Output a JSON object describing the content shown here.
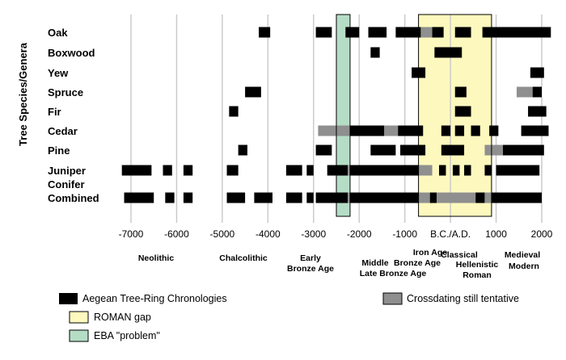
{
  "chart_data": {
    "type": "bar",
    "ylabel": "Tree Species/Genera",
    "x_tick_labels": [
      "-7000",
      "-6000",
      "-5000",
      "-4000",
      "-3000",
      "-2000",
      "-1000",
      "B.C./A.D.",
      "1000",
      "2000"
    ],
    "x_tick_values": [
      -7000,
      -6000,
      -5000,
      -4000,
      -3000,
      -2000,
      -1000,
      0,
      1000,
      2000
    ],
    "xlim": [
      -7300,
      2200
    ],
    "categories": [
      {
        "name": "Oak",
        "lines": [
          "Oak"
        ]
      },
      {
        "name": "Boxwood",
        "lines": [
          "Boxwood"
        ]
      },
      {
        "name": "Yew",
        "lines": [
          "Yew"
        ]
      },
      {
        "name": "Spruce",
        "lines": [
          "Spruce"
        ]
      },
      {
        "name": "Fir",
        "lines": [
          "Fir"
        ]
      },
      {
        "name": "Cedar",
        "lines": [
          "Cedar"
        ]
      },
      {
        "name": "Pine",
        "lines": [
          "Pine"
        ]
      },
      {
        "name": "Juniper",
        "lines": [
          "Juniper"
        ]
      },
      {
        "name": "Conifer Combined",
        "lines": [
          "Conifer",
          "Combined"
        ]
      }
    ],
    "spans": [
      {
        "row": 0,
        "start": -4200,
        "end": -3950,
        "kind": "chronology"
      },
      {
        "row": 0,
        "start": -2950,
        "end": -2600,
        "kind": "chronology"
      },
      {
        "row": 0,
        "start": -2300,
        "end": -2000,
        "kind": "chronology"
      },
      {
        "row": 0,
        "start": -1800,
        "end": -1400,
        "kind": "chronology"
      },
      {
        "row": 0,
        "start": -1200,
        "end": -650,
        "kind": "chronology"
      },
      {
        "row": 0,
        "start": -650,
        "end": -400,
        "kind": "tentative"
      },
      {
        "row": 0,
        "start": -400,
        "end": -150,
        "kind": "chronology"
      },
      {
        "row": 0,
        "start": 100,
        "end": 450,
        "kind": "chronology"
      },
      {
        "row": 0,
        "start": 700,
        "end": 2200,
        "kind": "chronology"
      },
      {
        "row": 1,
        "start": -1750,
        "end": -1550,
        "kind": "chronology"
      },
      {
        "row": 1,
        "start": -350,
        "end": 250,
        "kind": "chronology"
      },
      {
        "row": 2,
        "start": -850,
        "end": -550,
        "kind": "chronology"
      },
      {
        "row": 2,
        "start": 1750,
        "end": 2050,
        "kind": "chronology"
      },
      {
        "row": 3,
        "start": -4500,
        "end": -4150,
        "kind": "chronology"
      },
      {
        "row": 3,
        "start": 100,
        "end": 350,
        "kind": "chronology"
      },
      {
        "row": 3,
        "start": 1450,
        "end": 1800,
        "kind": "tentative"
      },
      {
        "row": 3,
        "start": 1800,
        "end": 2000,
        "kind": "chronology"
      },
      {
        "row": 4,
        "start": -4850,
        "end": -4650,
        "kind": "chronology"
      },
      {
        "row": 4,
        "start": 100,
        "end": 450,
        "kind": "chronology"
      },
      {
        "row": 4,
        "start": 1700,
        "end": 2100,
        "kind": "chronology"
      },
      {
        "row": 5,
        "start": -2900,
        "end": -2200,
        "kind": "tentative"
      },
      {
        "row": 5,
        "start": -2200,
        "end": -1450,
        "kind": "chronology"
      },
      {
        "row": 5,
        "start": -1450,
        "end": -1150,
        "kind": "tentative"
      },
      {
        "row": 5,
        "start": -1150,
        "end": -600,
        "kind": "chronology"
      },
      {
        "row": 5,
        "start": -200,
        "end": 0,
        "kind": "chronology"
      },
      {
        "row": 5,
        "start": 100,
        "end": 300,
        "kind": "chronology"
      },
      {
        "row": 5,
        "start": 450,
        "end": 650,
        "kind": "chronology"
      },
      {
        "row": 5,
        "start": 850,
        "end": 1050,
        "kind": "chronology"
      },
      {
        "row": 5,
        "start": 1550,
        "end": 2150,
        "kind": "chronology"
      },
      {
        "row": 6,
        "start": -4650,
        "end": -4450,
        "kind": "chronology"
      },
      {
        "row": 6,
        "start": -2950,
        "end": -2600,
        "kind": "chronology"
      },
      {
        "row": 6,
        "start": -1750,
        "end": -1200,
        "kind": "chronology"
      },
      {
        "row": 6,
        "start": -1100,
        "end": -550,
        "kind": "chronology"
      },
      {
        "row": 6,
        "start": -200,
        "end": 300,
        "kind": "chronology"
      },
      {
        "row": 6,
        "start": 750,
        "end": 1150,
        "kind": "tentative"
      },
      {
        "row": 6,
        "start": 1150,
        "end": 2050,
        "kind": "chronology"
      },
      {
        "row": 7,
        "start": -7200,
        "end": -6550,
        "kind": "chronology"
      },
      {
        "row": 7,
        "start": -6300,
        "end": -6100,
        "kind": "chronology"
      },
      {
        "row": 7,
        "start": -5850,
        "end": -5650,
        "kind": "chronology"
      },
      {
        "row": 7,
        "start": -4900,
        "end": -4650,
        "kind": "chronology"
      },
      {
        "row": 7,
        "start": -3600,
        "end": -3250,
        "kind": "chronology"
      },
      {
        "row": 7,
        "start": -3150,
        "end": -3000,
        "kind": "chronology"
      },
      {
        "row": 7,
        "start": -2700,
        "end": -2250,
        "kind": "chronology"
      },
      {
        "row": 7,
        "start": -2250,
        "end": -2200,
        "kind": "tentative"
      },
      {
        "row": 7,
        "start": -2200,
        "end": -700,
        "kind": "chronology"
      },
      {
        "row": 7,
        "start": -700,
        "end": -400,
        "kind": "tentative"
      },
      {
        "row": 7,
        "start": -250,
        "end": -100,
        "kind": "chronology"
      },
      {
        "row": 7,
        "start": 50,
        "end": 200,
        "kind": "chronology"
      },
      {
        "row": 7,
        "start": 300,
        "end": 450,
        "kind": "chronology"
      },
      {
        "row": 7,
        "start": 750,
        "end": 900,
        "kind": "chronology"
      },
      {
        "row": 7,
        "start": 1000,
        "end": 1950,
        "kind": "chronology"
      },
      {
        "row": 8,
        "start": -7150,
        "end": -6500,
        "kind": "chronology"
      },
      {
        "row": 8,
        "start": -6250,
        "end": -6050,
        "kind": "chronology"
      },
      {
        "row": 8,
        "start": -5850,
        "end": -5650,
        "kind": "chronology"
      },
      {
        "row": 8,
        "start": -4900,
        "end": -4500,
        "kind": "chronology"
      },
      {
        "row": 8,
        "start": -4300,
        "end": -3900,
        "kind": "chronology"
      },
      {
        "row": 8,
        "start": -3600,
        "end": -3250,
        "kind": "chronology"
      },
      {
        "row": 8,
        "start": -3150,
        "end": -3000,
        "kind": "chronology"
      },
      {
        "row": 8,
        "start": -2950,
        "end": -2250,
        "kind": "chronology"
      },
      {
        "row": 8,
        "start": -2250,
        "end": -2200,
        "kind": "tentative"
      },
      {
        "row": 8,
        "start": -2200,
        "end": -700,
        "kind": "chronology"
      },
      {
        "row": 8,
        "start": -700,
        "end": -450,
        "kind": "tentative"
      },
      {
        "row": 8,
        "start": -450,
        "end": -300,
        "kind": "chronology"
      },
      {
        "row": 8,
        "start": -300,
        "end": 550,
        "kind": "tentative"
      },
      {
        "row": 8,
        "start": 550,
        "end": 750,
        "kind": "chronology"
      },
      {
        "row": 8,
        "start": 750,
        "end": 900,
        "kind": "tentative"
      },
      {
        "row": 8,
        "start": 900,
        "end": 2000,
        "kind": "chronology"
      }
    ],
    "highlights": [
      {
        "name": "ROMAN gap",
        "start": -700,
        "end": 900,
        "color": "#fdf9be"
      },
      {
        "name": "EBA \"problem\"",
        "start": -2500,
        "end": -2200,
        "color": "#b5ddc5"
      }
    ],
    "eras": [
      {
        "lines": [
          "Neolithic"
        ],
        "center": -6050
      },
      {
        "lines": [
          "Chalcolithic"
        ],
        "center": -4500
      },
      {
        "lines": [
          "Early",
          "Bronze Age"
        ],
        "center": -2950
      },
      {
        "lines": [
          "Middle"
        ],
        "center": -1950
      },
      {
        "lines": [
          "Bronze Age"
        ],
        "center": -1300
      },
      {
        "lines": [
          "Late Bronze Age"
        ],
        "center": -1100
      },
      {
        "lines": [
          "Iron Age"
        ],
        "center": -700
      },
      {
        "lines": [
          "Classical"
        ],
        "center": 150
      },
      {
        "lines": [
          "Hellenistic"
        ],
        "center": 300
      },
      {
        "lines": [
          "Roman"
        ],
        "center": 400
      },
      {
        "lines": [
          "Medieval"
        ],
        "center": 1300
      },
      {
        "lines": [
          "Modern"
        ],
        "center": 1800
      }
    ],
    "legend": [
      {
        "label": "Aegean Tree-Ring Chronologies",
        "color": "#000000",
        "kind": "chronology"
      },
      {
        "label": "ROMAN gap",
        "color": "#fdf9be",
        "kind": "roman-gap"
      },
      {
        "label": "EBA \"problem\"",
        "color": "#b5ddc5",
        "kind": "eba-problem"
      },
      {
        "label": "Crossdating still tentative",
        "color": "#8f8f8f",
        "kind": "tentative"
      }
    ],
    "colors": {
      "chronology": "#000000",
      "tentative": "#8f8f8f",
      "grid": "#c8c8c8"
    }
  }
}
